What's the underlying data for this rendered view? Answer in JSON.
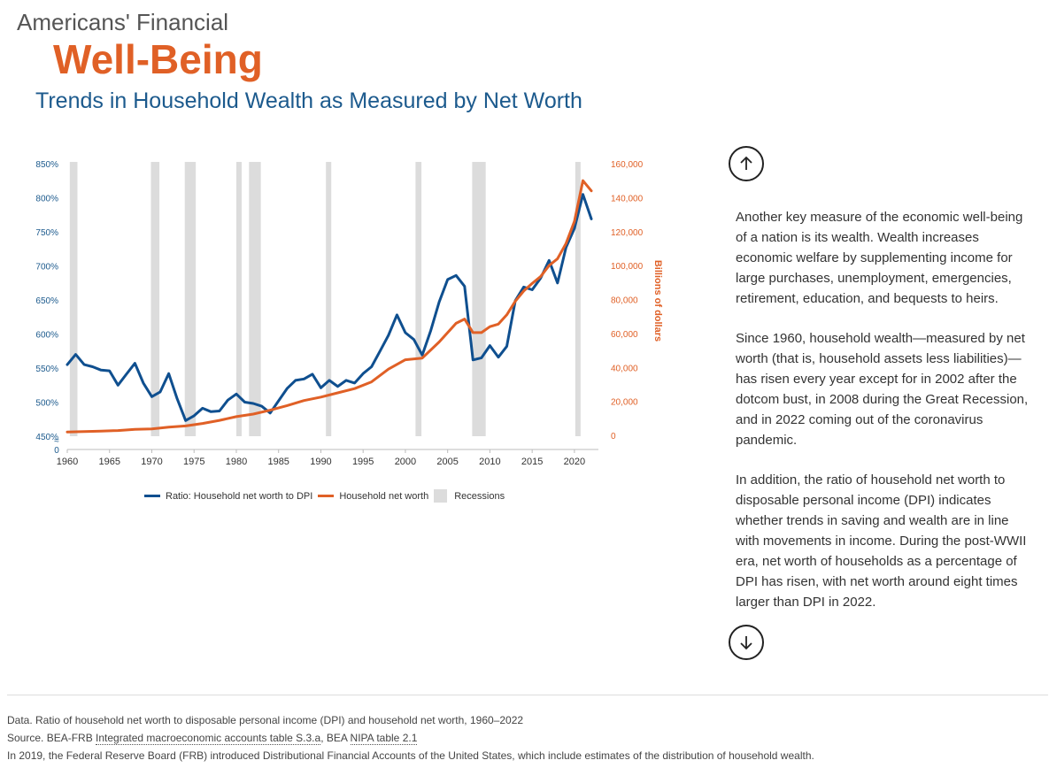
{
  "header": {
    "kicker": "Americans' Financial",
    "headline": "Well-Being",
    "subtitle": "Trends in Household Wealth as Measured by Net Worth"
  },
  "colors": {
    "ratio": "#0f4f8f",
    "networth": "#e06026",
    "recession": "#dcdcdc"
  },
  "icons": {
    "up": "arrow-up-icon",
    "down": "arrow-down-icon"
  },
  "chart_data": {
    "type": "line",
    "x_ticks": [
      "1960",
      "1965",
      "1970",
      "1975",
      "1980",
      "1985",
      "1990",
      "1995",
      "2000",
      "2005",
      "2010",
      "2015",
      "2020"
    ],
    "left_ticks": [
      "850%",
      "800%",
      "750%",
      "700%",
      "650%",
      "600%",
      "550%",
      "500%",
      "450%"
    ],
    "left_zero_label": "0",
    "axis_break_symbol": "≈",
    "right_ticks": [
      "160,000",
      "140,000",
      "120,000",
      "100,000",
      "80,000",
      "60,000",
      "40,000",
      "20,000",
      "0"
    ],
    "right_label": "Billions of dollars",
    "xlim": [
      1960,
      2022
    ],
    "ylim_left": [
      450,
      850
    ],
    "ylim_right": [
      0,
      160000
    ],
    "recessions": [
      [
        1960.3,
        1961.2
      ],
      [
        1969.9,
        1970.9
      ],
      [
        1973.9,
        1975.2
      ],
      [
        1980.0,
        1980.6
      ],
      [
        1981.5,
        1982.9
      ],
      [
        1990.6,
        1991.2
      ],
      [
        2001.2,
        2001.9
      ],
      [
        2007.9,
        2009.5
      ],
      [
        2020.1,
        2020.5
      ]
    ],
    "series": [
      {
        "name": "Ratio: Household net worth to DPI",
        "axis": "left",
        "x": [
          1960,
          1961,
          1962,
          1963,
          1964,
          1965,
          1966,
          1967,
          1968,
          1969,
          1970,
          1971,
          1972,
          1973,
          1974,
          1975,
          1976,
          1977,
          1978,
          1979,
          1980,
          1981,
          1982,
          1983,
          1984,
          1985,
          1986,
          1987,
          1988,
          1989,
          1990,
          1991,
          1992,
          1993,
          1994,
          1995,
          1996,
          1997,
          1998,
          1999,
          2000,
          2001,
          2002,
          2003,
          2004,
          2005,
          2006,
          2007,
          2008,
          2009,
          2010,
          2011,
          2012,
          2013,
          2014,
          2015,
          2016,
          2017,
          2018,
          2019,
          2020,
          2021,
          2022
        ],
        "values": [
          555,
          570,
          555,
          552,
          547,
          546,
          525,
          541,
          557,
          528,
          508,
          515,
          542,
          505,
          473,
          480,
          491,
          486,
          487,
          503,
          512,
          500,
          498,
          494,
          484,
          502,
          520,
          532,
          534,
          541,
          521,
          532,
          523,
          532,
          528,
          542,
          552,
          575,
          598,
          628,
          602,
          592,
          569,
          605,
          647,
          680,
          686,
          670,
          562,
          565,
          583,
          566,
          582,
          649,
          669,
          665,
          682,
          708,
          675,
          727,
          755,
          805,
          769
        ]
      },
      {
        "name": "Household net worth",
        "axis": "right",
        "x": [
          1960,
          1962,
          1964,
          1966,
          1968,
          1970,
          1972,
          1974,
          1976,
          1978,
          1980,
          1982,
          1984,
          1986,
          1988,
          1990,
          1992,
          1994,
          1996,
          1998,
          2000,
          2002,
          2004,
          2005,
          2006,
          2007,
          2008,
          2009,
          2010,
          2011,
          2012,
          2013,
          2014,
          2015,
          2016,
          2017,
          2018,
          2019,
          2020,
          2021,
          2022
        ],
        "values": [
          2000,
          2200,
          2500,
          2800,
          3500,
          3800,
          4800,
          5500,
          7000,
          8800,
          11000,
          12500,
          14800,
          17500,
          20500,
          22500,
          25000,
          27500,
          31500,
          39000,
          44500,
          45500,
          55000,
          60500,
          66000,
          68500,
          60500,
          60500,
          64000,
          65500,
          71000,
          79000,
          85000,
          89500,
          93500,
          100000,
          104000,
          113000,
          126000,
          150000,
          144000
        ]
      },
      {
        "name": "Recessions"
      }
    ]
  },
  "text": {
    "p1": "Another key measure of the economic well-being of a nation is its wealth. Wealth increases economic welfare by supplementing income for large purchases, unemployment, emergencies, retirement, education, and bequests to heirs.",
    "p2": "Since 1960, household wealth—measured by net worth (that is, household assets less liabilities)—has risen every year except for in 2002 after the dotcom bust, in 2008 during the Great Recession, and in 2022 coming out of the coronavirus pandemic.",
    "p3": "In addition, the ratio of household net worth to disposable personal income (DPI) indicates whether trends in saving and wealth are in line with movements in income. During the post-WWII era, net worth of households as a percentage of DPI has risen, with net worth around eight times larger than DPI in 2022."
  },
  "footer": {
    "data_note": "Data. Ratio of household net worth to disposable personal income (DPI) and household net worth, 1960–2022",
    "source_prefix": "Source. BEA-FRB ",
    "source_link1": "Integrated macroeconomic accounts table S.3.a",
    "source_sep": ", BEA ",
    "source_link2": "NIPA table 2.1",
    "note2019": "In 2019, the Federal Reserve Board (FRB) introduced Distributional Financial Accounts of the United States, which include estimates of the distribution of household wealth."
  }
}
